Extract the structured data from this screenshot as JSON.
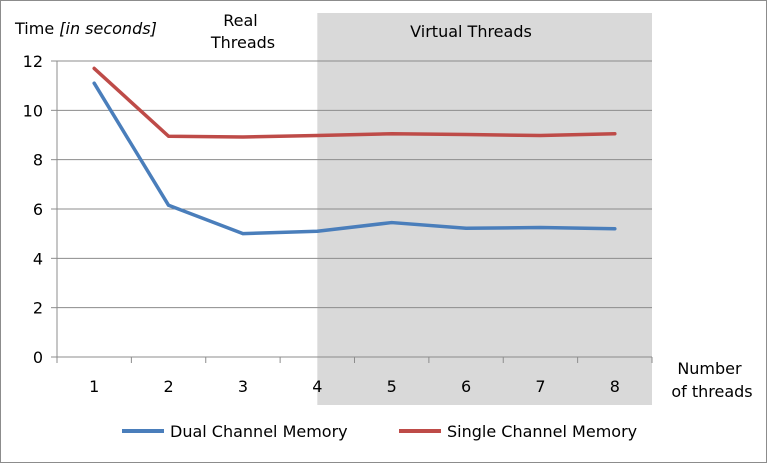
{
  "chart_data": {
    "type": "line",
    "categories": [
      1,
      2,
      3,
      4,
      5,
      6,
      7,
      8
    ],
    "series": [
      {
        "name": "Dual Channel Memory",
        "color": "#4a7ebb",
        "values": [
          11.1,
          6.15,
          5.0,
          5.1,
          5.45,
          5.22,
          5.25,
          5.2
        ]
      },
      {
        "name": "Single Channel Memory",
        "color": "#be4b48",
        "values": [
          11.7,
          8.95,
          8.92,
          8.98,
          9.05,
          9.02,
          8.98,
          9.05
        ]
      }
    ],
    "ylabel": {
      "main": "Time ",
      "italic": "[in seconds]"
    },
    "xlabel": {
      "line1": "Number",
      "line2": "of threads"
    },
    "ylim": [
      0,
      12
    ],
    "yticks": [
      0,
      2,
      4,
      6,
      8,
      10,
      12
    ],
    "grid": true,
    "legend": "bottom",
    "regions": [
      {
        "label_lines": [
          "Real",
          "Threads"
        ],
        "shaded": false
      },
      {
        "label": "Virtual Threads",
        "shaded": true,
        "color": "#d9d9d9",
        "from_x": 4,
        "to_x": 8.5
      }
    ]
  }
}
